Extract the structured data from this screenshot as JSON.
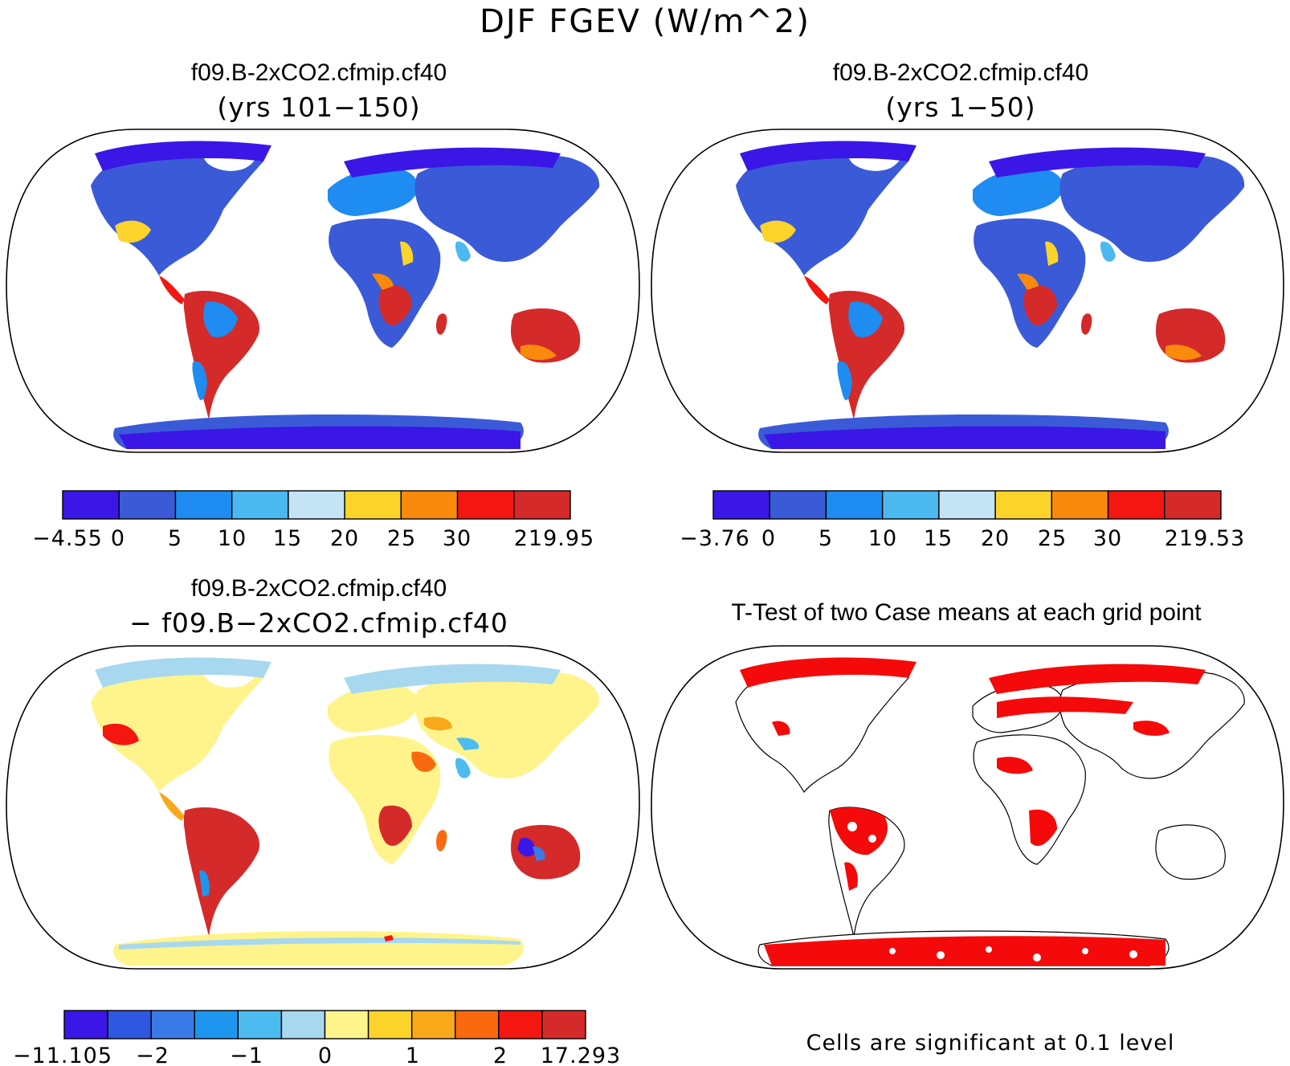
{
  "title": "DJF FGEV (W/m^2)",
  "panels": [
    {
      "id": "case1",
      "title": "f09.B-2xCO2.cfmip.cf40",
      "subtitle": "(yrs 101−150)",
      "colorbar": {
        "colors": [
          "#3a17e6",
          "#3a5ad8",
          "#1e8cf0",
          "#4cb8f0",
          "#c4e4f6",
          "#fbd32a",
          "#f98a0c",
          "#f41610",
          "#d42a2a"
        ],
        "tick_labels": [
          "−4.55",
          "0",
          "5",
          "10",
          "15",
          "20",
          "25",
          "30",
          "219.95"
        ]
      }
    },
    {
      "id": "case2",
      "title": "f09.B-2xCO2.cfmip.cf40",
      "subtitle": "(yrs 1−50)",
      "colorbar": {
        "colors": [
          "#3a17e6",
          "#3a5ad8",
          "#1e8cf0",
          "#4cb8f0",
          "#c4e4f6",
          "#fbd32a",
          "#f98a0c",
          "#f41610",
          "#d42a2a"
        ],
        "tick_labels": [
          "−3.76",
          "0",
          "5",
          "10",
          "15",
          "20",
          "25",
          "30",
          "219.53"
        ]
      }
    },
    {
      "id": "diff",
      "title": "f09.B-2xCO2.cfmip.cf40",
      "subtitle": "− f09.B−2xCO2.cfmip.cf40",
      "colorbar": {
        "colors": [
          "#3a17e6",
          "#2f58e0",
          "#3a7ae8",
          "#1e96f0",
          "#4cbcf0",
          "#a8d8f0",
          "#fff48c",
          "#fbd32a",
          "#f9a81a",
          "#f96a10",
          "#f41610",
          "#d42a2a"
        ],
        "tick_labels": [
          "−11.105",
          "−2",
          "−1",
          "0",
          "1",
          "2",
          "17.293"
        ]
      }
    },
    {
      "id": "ttest",
      "title": "T-Test of two Case means at each grid point",
      "footer": "Cells are significant at 0.1 level"
    }
  ],
  "palette": {
    "ocean": "#ffffff",
    "coast": "#000000",
    "sig": "#f40a0a"
  }
}
